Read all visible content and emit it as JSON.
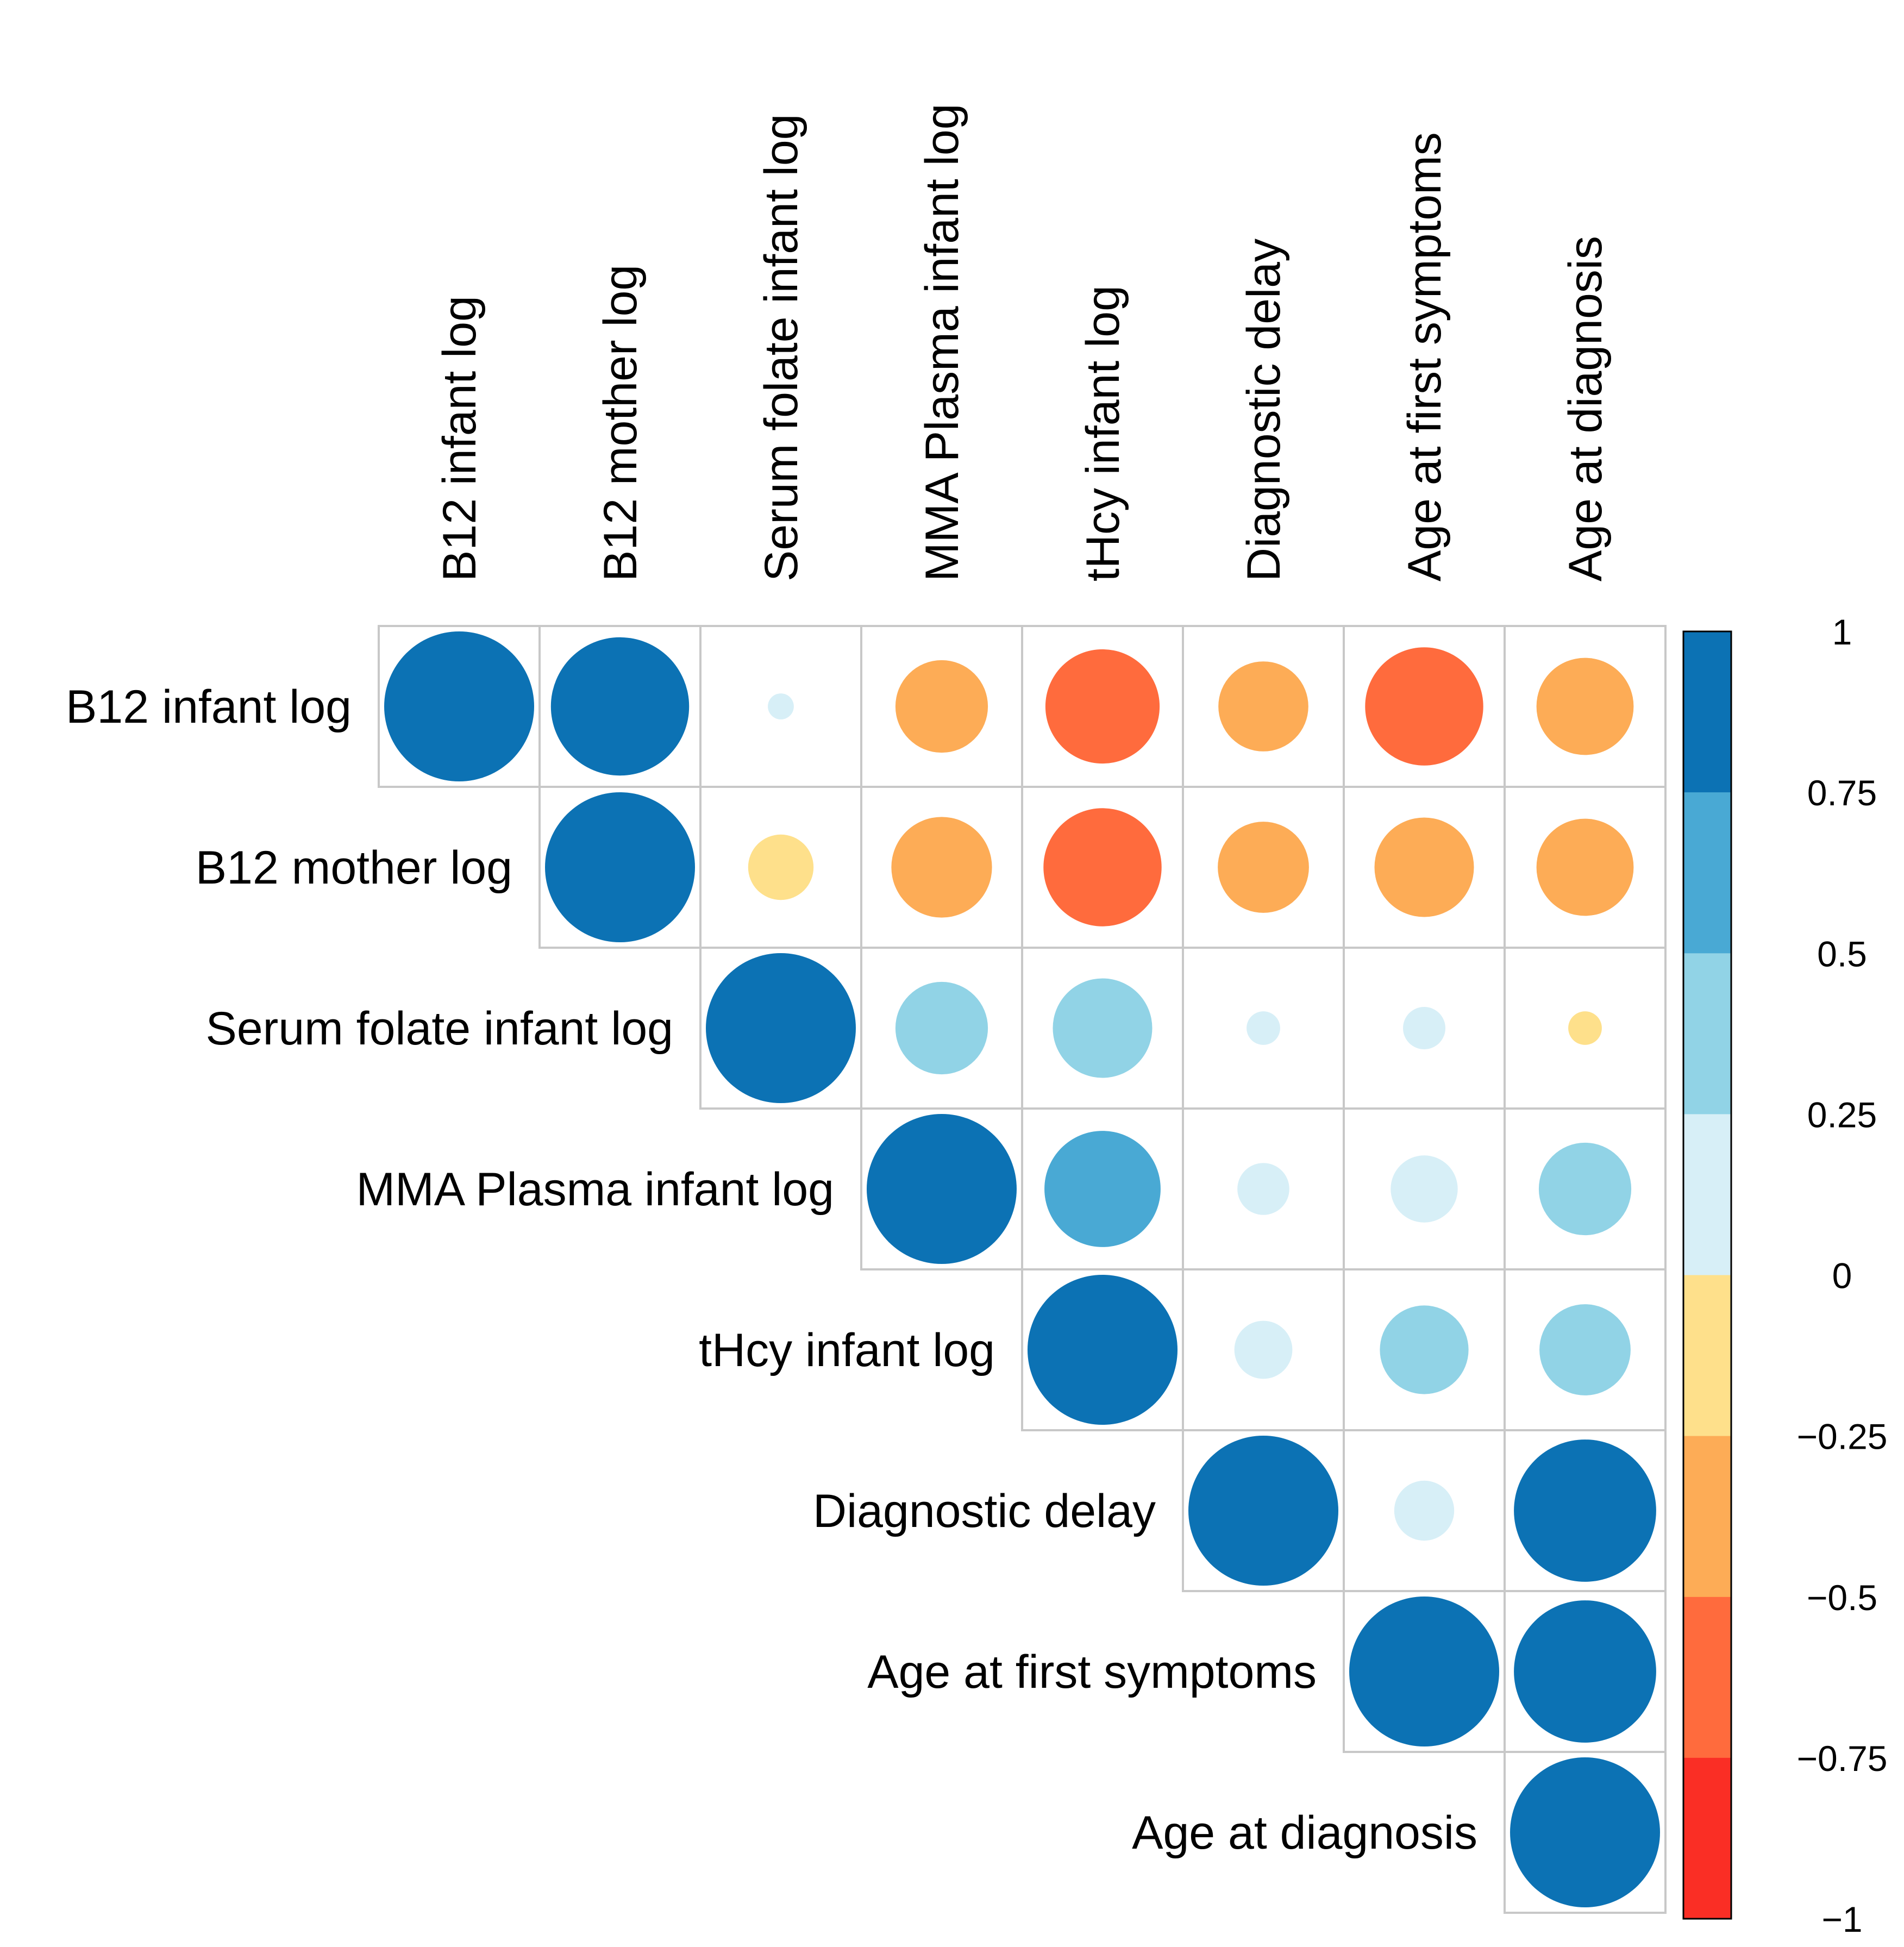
{
  "chart_data": {
    "type": "heatmap",
    "subtype": "correlation-circle-upper-triangle",
    "variables": [
      "B12 infant log",
      "B12 mother log",
      "Serum folate infant log",
      "MMA Plasma infant log",
      "tHcy infant log",
      "Diagnostic delay",
      "Age at first symptoms",
      "Age at diagnosis"
    ],
    "matrix": [
      [
        1.0,
        0.85,
        0.03,
        -0.38,
        -0.58,
        -0.36,
        -0.62,
        -0.42
      ],
      [
        null,
        1.0,
        -0.19,
        -0.45,
        -0.62,
        -0.37,
        -0.44,
        -0.42
      ],
      [
        null,
        null,
        1.0,
        0.38,
        0.44,
        0.05,
        0.08,
        -0.05
      ],
      [
        null,
        null,
        null,
        1.0,
        0.6,
        0.12,
        0.2,
        0.38
      ],
      [
        null,
        null,
        null,
        null,
        1.0,
        0.15,
        0.35,
        0.37
      ],
      [
        null,
        null,
        null,
        null,
        null,
        1.0,
        0.16,
        0.9
      ],
      [
        null,
        null,
        null,
        null,
        null,
        null,
        1.0,
        0.9
      ],
      [
        null,
        null,
        null,
        null,
        null,
        null,
        null,
        1.0
      ]
    ],
    "colorbar": {
      "range": [
        -1,
        1
      ],
      "ticks": [
        "1",
        "0.75",
        "0.5",
        "0.25",
        "0",
        "−0.25",
        "−0.5",
        "−0.75",
        "−1"
      ],
      "colors_top_to_bottom": [
        "#0c72b4",
        "#49a9d4",
        "#91d3e6",
        "#d7eff7",
        "#fee08b",
        "#fdac56",
        "#ff6b3d",
        "#fa2e25"
      ]
    },
    "grid": true,
    "legend_position": "right"
  }
}
